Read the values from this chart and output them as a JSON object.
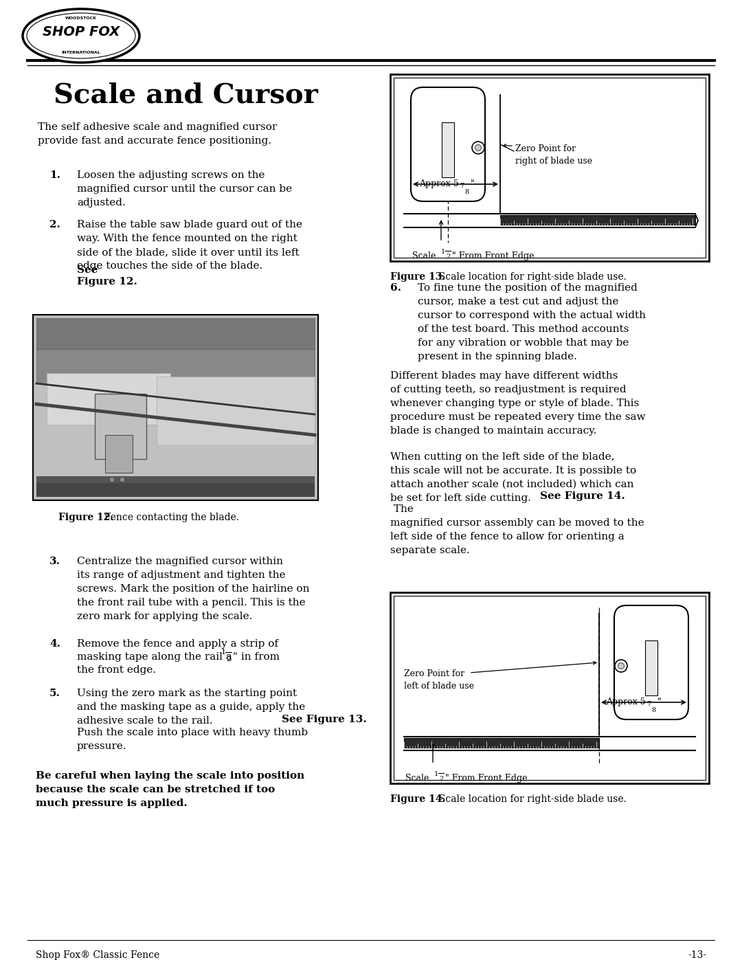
{
  "page_width": 10.8,
  "page_height": 13.97,
  "bg_color": "#ffffff",
  "title": "Scale and Cursor",
  "intro_text": "The self adhesive scale and magnified cursor\nprovide fast and accurate fence positioning.",
  "step1_num": "1.",
  "step1_text": "Loosen the adjusting screws on the\nmagnified cursor until the cursor can be\nadjusted.",
  "step2_num": "2.",
  "step2_text": "Raise the table saw blade guard out of the\nway. With the fence mounted on the right\nside of the blade, slide it over until its left\nedge touches the side of the blade. See\nFigure 12.",
  "step3_num": "3.",
  "step3_text": "Centralize the magnified cursor within\nits range of adjustment and tighten the\nscrews. Mark the position of the hairline on\nthe front rail tube with a pencil. This is the\nzero mark for applying the scale.",
  "step4_num": "4.",
  "step4_line1": "Remove the fence and apply a strip of",
  "step4_line2": "masking tape along the rail a ",
  "step4_line3": "\" in from",
  "step4_line4": "the front edge.",
  "step5_num": "5.",
  "step5_body": "Using the zero mark as the starting point\nand the masking tape as a guide, apply the\nadhesive scale to the rail. ",
  "step5_bold": "See Figure 13.",
  "step5_rest": "Push the scale into place with heavy thumb\npressure.",
  "bold_warning": "Be careful when laying the scale into position\nbecause the scale can be stretched if too\nmuch pressure is applied.",
  "step6_num": "6.",
  "step6_text": "To fine tune the position of the magnified\ncursor, make a test cut and adjust the\ncursor to correspond with the actual width\nof the test board. This method accounts\nfor any vibration or wobble that may be\npresent in the spinning blade.",
  "para1": "Different blades may have different widths\nof cutting teeth, so readjustment is required\nwhenever changing type or style of blade. This\nprocedure must be repeated every time the saw\nblade is changed to maintain accuracy.",
  "para2_pre": "When cutting on the left side of the blade,\nthis scale will not be accurate. It is possible to\nattach another scale (not included) which can\nbe set for left side cutting. ",
  "para2_bold": "See Figure 14.",
  "para2_post": " The\nmagnified cursor assembly can be moved to the\nleft side of the fence to allow for orienting a\nseparate scale.",
  "fig12_caption_bold": "Figure 12.",
  "fig12_caption_rest": "  Fence contacting the blade.",
  "fig13_caption_bold": "Figure 13.",
  "fig13_caption_rest": "  Scale location for right-side blade use.",
  "fig14_caption_bold": "Figure 14.",
  "fig14_caption_rest": "  Scale location for right-side blade use.",
  "footer_left": "Shop Fox® Classic Fence",
  "footer_right": "-13-",
  "text_color": "#000000"
}
